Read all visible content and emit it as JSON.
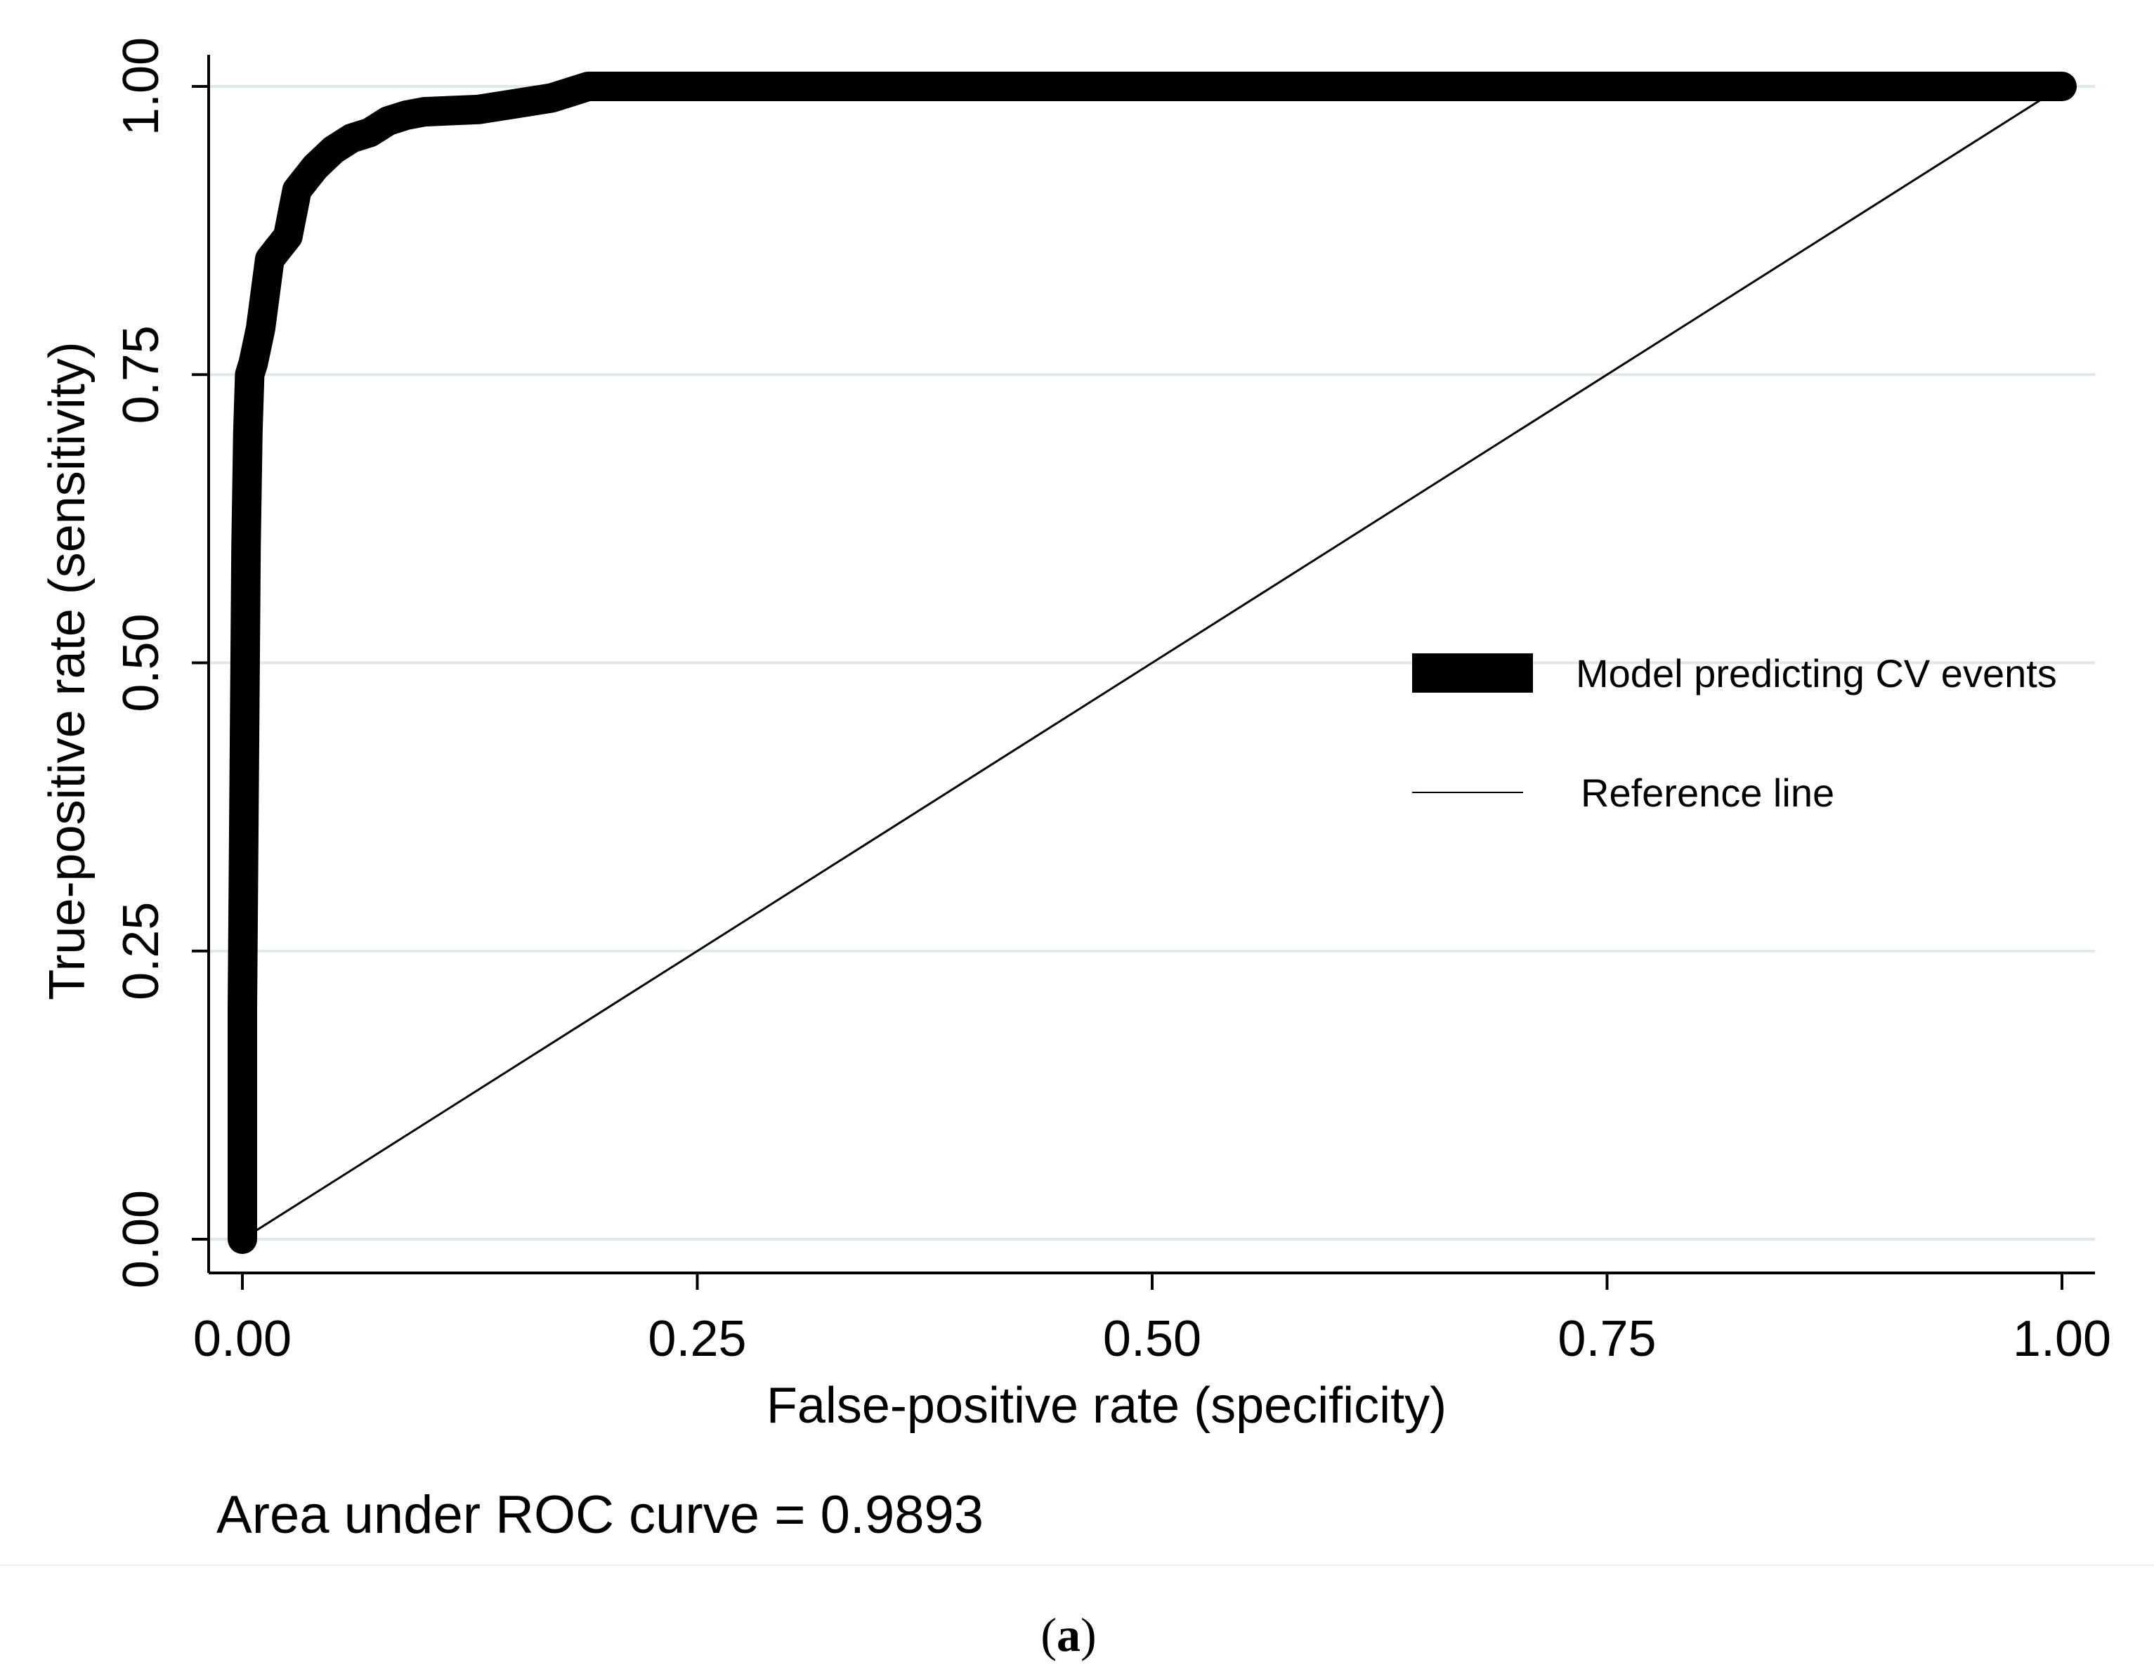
{
  "chart_data": {
    "type": "line",
    "xlabel": "False-positive rate (specificity)",
    "ylabel": "True-positive rate (sensitivity)",
    "xlim": [
      0,
      1
    ],
    "ylim": [
      0,
      1
    ],
    "x_ticks": [
      "0.00",
      "0.25",
      "0.50",
      "0.75",
      "1.00"
    ],
    "y_ticks": [
      "0.00",
      "0.25",
      "0.50",
      "0.75",
      "1.00"
    ],
    "grid": "horizontal",
    "legend_position": "right",
    "series": [
      {
        "name": "Model predicting CV events",
        "style": "thick",
        "color": "#000000",
        "x": [
          0,
          0,
          0.001,
          0.002,
          0.003,
          0.004,
          0.006,
          0.01,
          0.015,
          0.02,
          0.025,
          0.03,
          0.035,
          0.04,
          0.05,
          0.06,
          0.07,
          0.08,
          0.09,
          0.1,
          0.13,
          0.15,
          0.17,
          0.19,
          0.22,
          0.27,
          0.4,
          0.6,
          0.8,
          1.0
        ],
        "y": [
          0,
          0.2,
          0.4,
          0.6,
          0.7,
          0.75,
          0.76,
          0.79,
          0.85,
          0.86,
          0.87,
          0.91,
          0.92,
          0.93,
          0.945,
          0.955,
          0.96,
          0.97,
          0.975,
          0.978,
          0.98,
          0.985,
          0.99,
          1.0,
          1.0,
          1.0,
          1.0,
          1.0,
          1.0,
          1.0
        ]
      },
      {
        "name": "Reference line",
        "style": "thin",
        "color": "#000000",
        "x": [
          0,
          1
        ],
        "y": [
          0,
          1
        ]
      }
    ],
    "annotation": "Area under ROC curve = 0.9893",
    "caption": {
      "open": "(",
      "letter": "a",
      "close": ")"
    },
    "colors": {
      "gridline": "#dfe8ec",
      "axis": "#000000",
      "background": "#ffffff"
    }
  }
}
